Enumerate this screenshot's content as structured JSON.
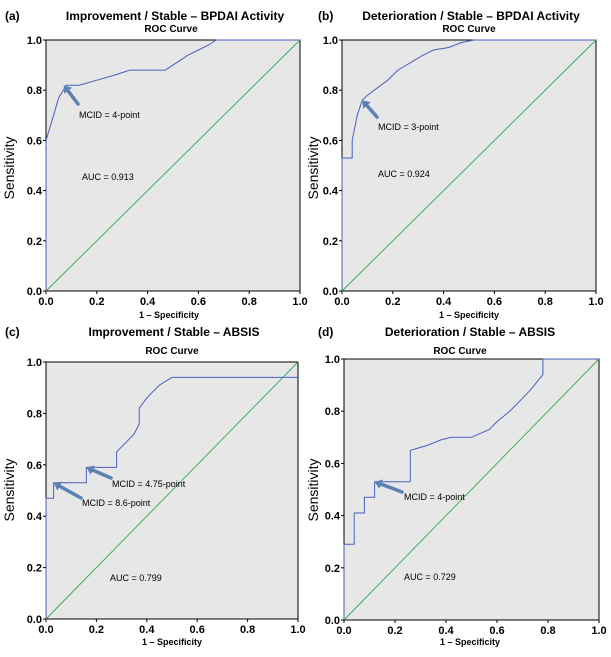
{
  "figure": {
    "common": {
      "chart_subtitle": "ROC Curve",
      "ylabel": "Sensitivity",
      "xlabel": "1 – Specificity",
      "tick_labels": [
        "0.0",
        "0.2",
        "0.4",
        "0.6",
        "0.8",
        "1.0"
      ]
    }
  },
  "colors": {
    "roc_line": "#4a5fbf",
    "reference_line": "#33a853",
    "arrow": "#5b82b4",
    "plot_background": "#e7e7e7"
  },
  "chart_data": [
    {
      "type": "line",
      "panel": "(a)",
      "title": "Improvement / Stable – BPDAI Activity",
      "subtitle": "ROC Curve",
      "xlabel": "1 – Specificity",
      "ylabel": "Sensitivity",
      "xlim": [
        0,
        1
      ],
      "ylim": [
        0,
        1
      ],
      "grid": false,
      "series": [
        {
          "role": "roc",
          "x": [
            0,
            0,
            0.03,
            0.05,
            0.08,
            0.13,
            0.2,
            0.27,
            0.33,
            0.36,
            0.47,
            0.5,
            0.53,
            0.56,
            0.6,
            0.64,
            0.67,
            0.7,
            1.0
          ],
          "y": [
            0,
            0.6,
            0.7,
            0.77,
            0.82,
            0.82,
            0.84,
            0.86,
            0.88,
            0.88,
            0.88,
            0.9,
            0.92,
            0.94,
            0.96,
            0.98,
            1.0,
            1.0,
            1.0
          ]
        },
        {
          "role": "reference",
          "x": [
            0,
            1
          ],
          "y": [
            0,
            1
          ]
        }
      ],
      "annotations": [
        {
          "text": "MCID = 4-point",
          "at": [
            0.07,
            0.82
          ]
        },
        {
          "text": "AUC = 0.913"
        }
      ]
    },
    {
      "type": "line",
      "panel": "(b)",
      "title": "Deterioration / Stable – BPDAI Activity",
      "subtitle": "ROC Curve",
      "xlabel": "1 – Specificity",
      "ylabel": "Sensitivity",
      "xlim": [
        0,
        1
      ],
      "ylim": [
        0,
        1
      ],
      "grid": false,
      "series": [
        {
          "role": "roc",
          "x": [
            0,
            0,
            0.04,
            0.04,
            0.06,
            0.08,
            0.1,
            0.14,
            0.18,
            0.22,
            0.27,
            0.32,
            0.36,
            0.42,
            0.47,
            0.52,
            0.55,
            1.0
          ],
          "y": [
            0,
            0.53,
            0.53,
            0.6,
            0.7,
            0.76,
            0.78,
            0.81,
            0.84,
            0.88,
            0.91,
            0.94,
            0.96,
            0.97,
            0.99,
            1.0,
            1.0,
            1.0
          ]
        },
        {
          "role": "reference",
          "x": [
            0,
            1
          ],
          "y": [
            0,
            1
          ]
        }
      ],
      "annotations": [
        {
          "text": "MCID = 3-point",
          "at": [
            0.08,
            0.76
          ]
        },
        {
          "text": "AUC = 0.924"
        }
      ]
    },
    {
      "type": "line",
      "panel": "(c)",
      "title": "Improvement / Stable – ABSIS",
      "subtitle": "ROC Curve",
      "xlabel": "1 – Specificity",
      "ylabel": "Sensitivity",
      "xlim": [
        0,
        1
      ],
      "ylim": [
        0,
        1
      ],
      "grid": false,
      "series": [
        {
          "role": "roc",
          "x": [
            0,
            0,
            0.03,
            0.03,
            0.16,
            0.16,
            0.28,
            0.28,
            0.35,
            0.37,
            0.37,
            0.4,
            0.42,
            0.45,
            0.5,
            0.5,
            1.0
          ],
          "y": [
            0,
            0.47,
            0.47,
            0.53,
            0.53,
            0.59,
            0.59,
            0.65,
            0.72,
            0.76,
            0.82,
            0.86,
            0.88,
            0.91,
            0.94,
            0.94,
            0.94
          ]
        },
        {
          "role": "reference",
          "x": [
            0,
            1
          ],
          "y": [
            0,
            1
          ]
        }
      ],
      "annotations": [
        {
          "text": "MCID = 4.75-point",
          "at": [
            0.16,
            0.59
          ]
        },
        {
          "text": "MCID = 8.6-point",
          "at": [
            0.03,
            0.53
          ]
        },
        {
          "text": "AUC = 0.799"
        }
      ]
    },
    {
      "type": "line",
      "panel": "(d)",
      "title": "Deterioration / Stable – ABSIS",
      "subtitle": "ROC Curve",
      "xlabel": "1 – Specificity",
      "ylabel": "Sensitivity",
      "xlim": [
        0,
        1
      ],
      "ylim": [
        0,
        1
      ],
      "grid": false,
      "series": [
        {
          "role": "roc",
          "x": [
            0,
            0,
            0.04,
            0.04,
            0.08,
            0.08,
            0.12,
            0.12,
            0.26,
            0.26,
            0.33,
            0.38,
            0.42,
            0.5,
            0.57,
            0.6,
            0.65,
            0.69,
            0.73,
            0.73,
            0.78,
            0.78,
            1.0
          ],
          "y": [
            0,
            0.29,
            0.29,
            0.41,
            0.41,
            0.47,
            0.47,
            0.53,
            0.53,
            0.65,
            0.67,
            0.69,
            0.7,
            0.7,
            0.73,
            0.76,
            0.8,
            0.84,
            0.88,
            0.88,
            0.94,
            1.0,
            1.0
          ]
        },
        {
          "role": "reference",
          "x": [
            0,
            1
          ],
          "y": [
            0,
            1
          ]
        }
      ],
      "annotations": [
        {
          "text": "MCID = 4-point",
          "at": [
            0.12,
            0.53
          ]
        },
        {
          "text": "AUC = 0.729"
        }
      ]
    }
  ]
}
